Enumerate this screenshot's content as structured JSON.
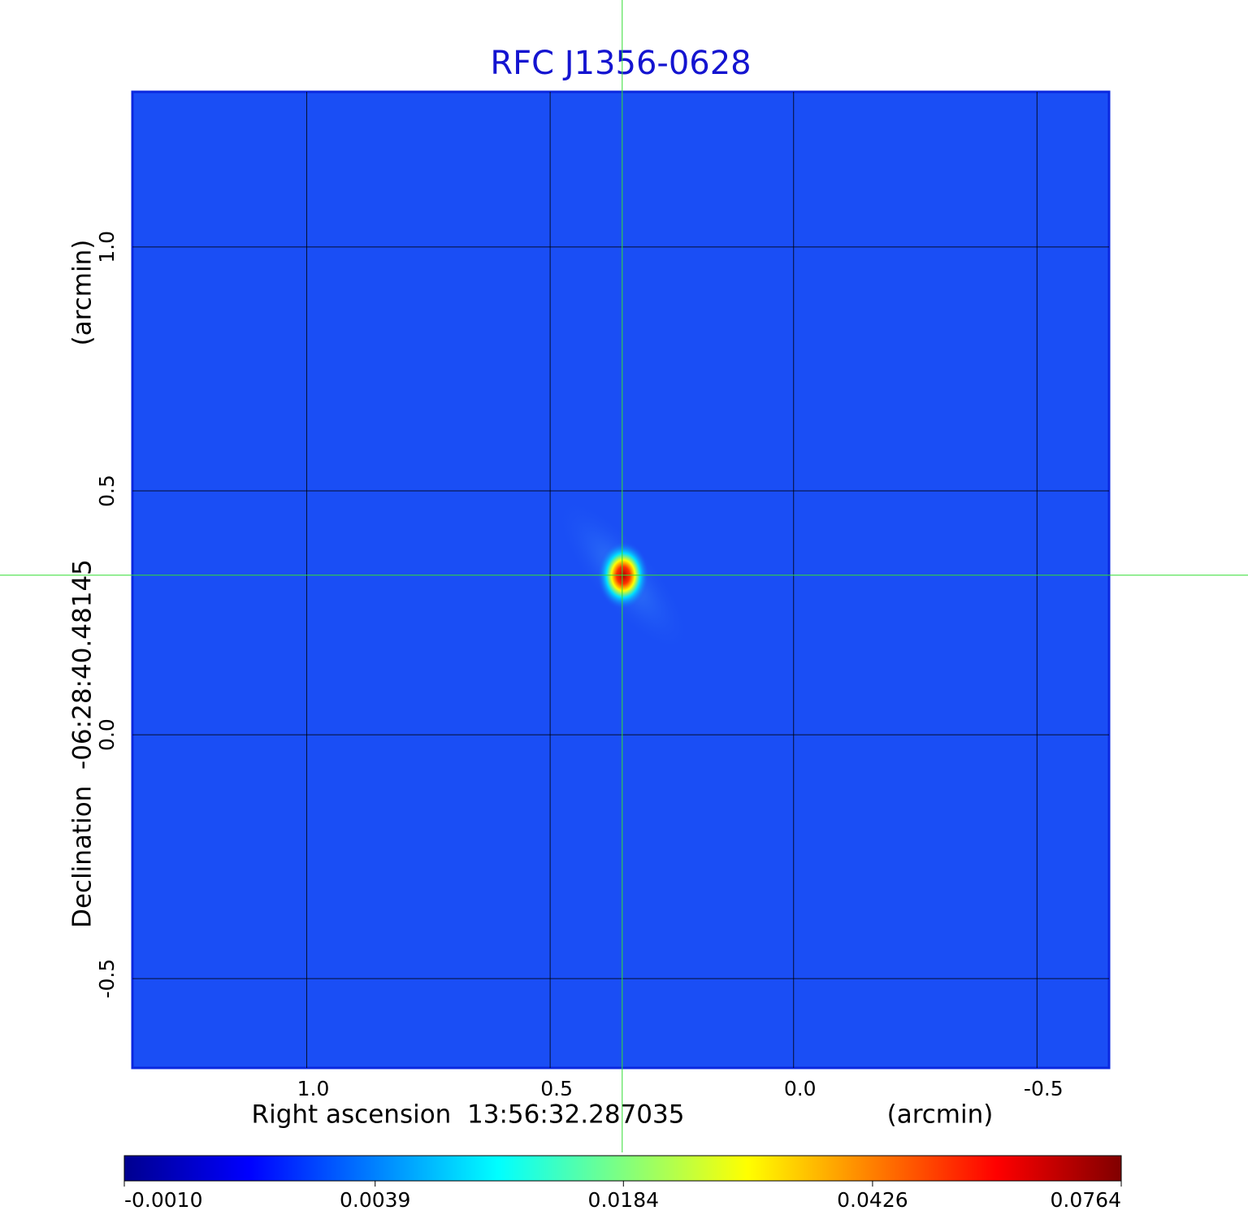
{
  "chart_data": {
    "type": "image",
    "title": "RFC J1356-0628",
    "xlabel": "Right ascension  13:56:32.287035",
    "xunit": "(arcmin)",
    "ylabel": "Declination  -06:28:40.48145",
    "yunit": "(arcmin)",
    "xlim": [
      1.358,
      -0.648
    ],
    "ylim": [
      -0.683,
      1.318
    ],
    "xticks": [
      {
        "value": 1,
        "label": "1.0"
      },
      0.5,
      {
        "value": 0,
        "label": "0.0"
      },
      -0.5
    ],
    "yticks": [
      {
        "value": 1,
        "label": "1.0"
      },
      0.5,
      {
        "value": 0,
        "label": "0.0"
      },
      -0.5
    ],
    "grid": true,
    "crosshair": {
      "x": 0.352,
      "y": 0.327,
      "color": "#33dd33"
    },
    "colorbar": {
      "clim": [
        -0.001,
        0.0764
      ],
      "scale": "sqrt",
      "colormap": "jet",
      "ticks": [
        {
          "value": -0.001,
          "label": "-0.0010"
        },
        0.0039,
        0.0184,
        0.0426,
        0.0764
      ]
    }
  }
}
